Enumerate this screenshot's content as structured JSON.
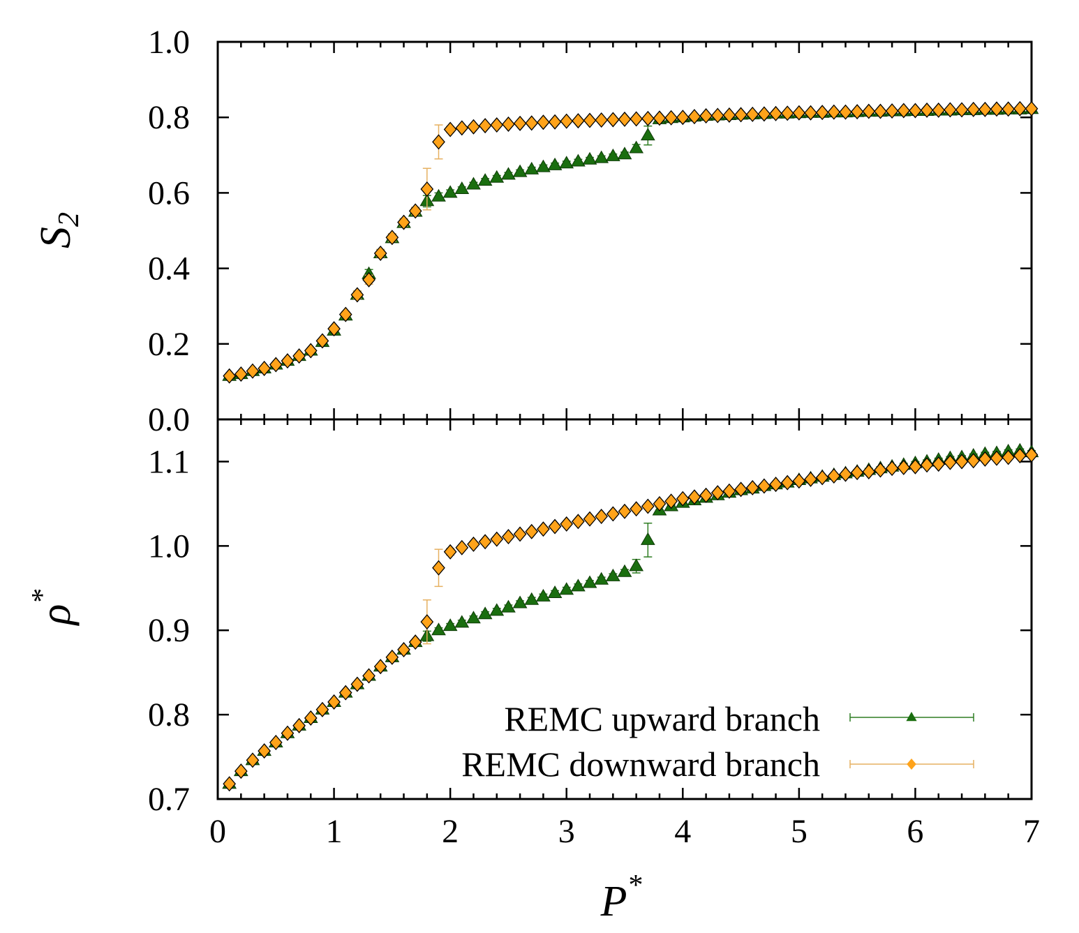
{
  "chart_data": [
    {
      "type": "scatter",
      "panel": "top",
      "ylabel": "S",
      "ylabel_subscript": "2",
      "xlabel": "",
      "xlim": [
        0,
        7
      ],
      "ylim": [
        0.0,
        1.0
      ],
      "yticks": [
        "0.0",
        "0.2",
        "0.4",
        "0.6",
        "0.8",
        "1.0"
      ],
      "grid": false,
      "series": [
        {
          "name": "REMC upward branch",
          "marker": "triangle",
          "color": "#1a6e0f",
          "x": [
            0.1,
            0.2,
            0.3,
            0.4,
            0.5,
            0.6,
            0.7,
            0.8,
            0.9,
            1.0,
            1.1,
            1.2,
            1.3,
            1.4,
            1.5,
            1.6,
            1.7,
            1.8,
            1.9,
            2.0,
            2.1,
            2.2,
            2.3,
            2.4,
            2.5,
            2.6,
            2.7,
            2.8,
            2.9,
            3.0,
            3.1,
            3.2,
            3.3,
            3.4,
            3.5,
            3.6,
            3.7,
            3.8,
            3.9,
            4.0,
            4.1,
            4.2,
            4.3,
            4.4,
            4.5,
            4.6,
            4.7,
            4.8,
            4.9,
            5.0,
            5.1,
            5.2,
            5.3,
            5.4,
            5.5,
            5.6,
            5.7,
            5.8,
            5.9,
            6.0,
            6.1,
            6.2,
            6.3,
            6.4,
            6.5,
            6.6,
            6.7,
            6.8,
            6.9,
            7.0
          ],
          "y": [
            0.115,
            0.12,
            0.128,
            0.135,
            0.145,
            0.155,
            0.168,
            0.182,
            0.205,
            0.235,
            0.275,
            0.33,
            0.385,
            0.44,
            0.48,
            0.52,
            0.55,
            0.578,
            0.59,
            0.6,
            0.61,
            0.622,
            0.632,
            0.64,
            0.648,
            0.655,
            0.662,
            0.668,
            0.673,
            0.678,
            0.683,
            0.688,
            0.692,
            0.697,
            0.702,
            0.718,
            0.752,
            0.795,
            0.798,
            0.8,
            0.802,
            0.804,
            0.805,
            0.806,
            0.807,
            0.808,
            0.809,
            0.81,
            0.81,
            0.811,
            0.812,
            0.812,
            0.813,
            0.813,
            0.814,
            0.815,
            0.815,
            0.816,
            0.816,
            0.817,
            0.817,
            0.818,
            0.818,
            0.819,
            0.819,
            0.82,
            0.82,
            0.821,
            0.821,
            0.822
          ],
          "err": [
            0.004,
            0.004,
            0.004,
            0.004,
            0.004,
            0.004,
            0.004,
            0.004,
            0.005,
            0.006,
            0.008,
            0.01,
            0.012,
            0.01,
            0.01,
            0.01,
            0.01,
            0.015,
            0.01,
            0.008,
            0.006,
            0.006,
            0.006,
            0.006,
            0.006,
            0.006,
            0.006,
            0.006,
            0.006,
            0.006,
            0.006,
            0.006,
            0.006,
            0.006,
            0.006,
            0.01,
            0.025,
            0.006,
            0.004,
            0.004,
            0.004,
            0.004,
            0.004,
            0.004,
            0.004,
            0.004,
            0.004,
            0.004,
            0.004,
            0.004,
            0.004,
            0.004,
            0.004,
            0.004,
            0.004,
            0.004,
            0.004,
            0.004,
            0.004,
            0.004,
            0.004,
            0.004,
            0.004,
            0.004,
            0.004,
            0.004,
            0.004,
            0.004,
            0.004,
            0.004
          ]
        },
        {
          "name": "REMC downward branch",
          "marker": "diamond",
          "color": "#ffa31a",
          "x": [
            0.1,
            0.2,
            0.3,
            0.4,
            0.5,
            0.6,
            0.7,
            0.8,
            0.9,
            1.0,
            1.1,
            1.2,
            1.3,
            1.4,
            1.5,
            1.6,
            1.7,
            1.8,
            1.9,
            2.0,
            2.1,
            2.2,
            2.3,
            2.4,
            2.5,
            2.6,
            2.7,
            2.8,
            2.9,
            3.0,
            3.1,
            3.2,
            3.3,
            3.4,
            3.5,
            3.6,
            3.7,
            3.8,
            3.9,
            4.0,
            4.1,
            4.2,
            4.3,
            4.4,
            4.5,
            4.6,
            4.7,
            4.8,
            4.9,
            5.0,
            5.1,
            5.2,
            5.3,
            5.4,
            5.5,
            5.6,
            5.7,
            5.8,
            5.9,
            6.0,
            6.1,
            6.2,
            6.3,
            6.4,
            6.5,
            6.6,
            6.7,
            6.8,
            6.9,
            7.0
          ],
          "y": [
            0.115,
            0.12,
            0.128,
            0.135,
            0.145,
            0.155,
            0.168,
            0.182,
            0.208,
            0.24,
            0.278,
            0.33,
            0.37,
            0.44,
            0.482,
            0.522,
            0.552,
            0.61,
            0.735,
            0.768,
            0.772,
            0.775,
            0.778,
            0.78,
            0.782,
            0.784,
            0.785,
            0.787,
            0.788,
            0.79,
            0.791,
            0.792,
            0.793,
            0.794,
            0.795,
            0.796,
            0.797,
            0.798,
            0.799,
            0.8,
            0.802,
            0.804,
            0.805,
            0.806,
            0.807,
            0.808,
            0.809,
            0.81,
            0.811,
            0.812,
            0.812,
            0.813,
            0.814,
            0.814,
            0.815,
            0.816,
            0.816,
            0.817,
            0.818,
            0.818,
            0.819,
            0.819,
            0.82,
            0.82,
            0.821,
            0.821,
            0.822,
            0.822,
            0.823,
            0.823
          ],
          "err": [
            0.004,
            0.004,
            0.004,
            0.004,
            0.004,
            0.004,
            0.004,
            0.004,
            0.005,
            0.006,
            0.008,
            0.01,
            0.012,
            0.01,
            0.01,
            0.01,
            0.01,
            0.055,
            0.045,
            0.008,
            0.005,
            0.004,
            0.004,
            0.004,
            0.004,
            0.004,
            0.004,
            0.004,
            0.004,
            0.004,
            0.004,
            0.004,
            0.004,
            0.004,
            0.004,
            0.004,
            0.004,
            0.004,
            0.004,
            0.004,
            0.004,
            0.004,
            0.004,
            0.004,
            0.004,
            0.004,
            0.004,
            0.004,
            0.004,
            0.004,
            0.004,
            0.004,
            0.004,
            0.004,
            0.004,
            0.004,
            0.004,
            0.004,
            0.004,
            0.004,
            0.004,
            0.004,
            0.004,
            0.004,
            0.004,
            0.004,
            0.004,
            0.004,
            0.004,
            0.004
          ]
        }
      ]
    },
    {
      "type": "scatter",
      "panel": "bottom",
      "ylabel": "ρ",
      "ylabel_superscript": "*",
      "xlabel": "P",
      "xlabel_superscript": "*",
      "xlim": [
        0,
        7
      ],
      "ylim": [
        0.7,
        1.15
      ],
      "xticks": [
        "0",
        "1",
        "2",
        "3",
        "4",
        "5",
        "6",
        "7"
      ],
      "yticks": [
        "0.7",
        "0.8",
        "0.9",
        "1.0",
        "1.1"
      ],
      "grid": false,
      "legend_position": "bottom-right",
      "series": [
        {
          "name": "REMC upward branch",
          "marker": "triangle",
          "color": "#1a6e0f",
          "x": [
            0.1,
            0.2,
            0.3,
            0.4,
            0.5,
            0.6,
            0.7,
            0.8,
            0.9,
            1.0,
            1.1,
            1.2,
            1.3,
            1.4,
            1.5,
            1.6,
            1.7,
            1.8,
            1.9,
            2.0,
            2.1,
            2.2,
            2.3,
            2.4,
            2.5,
            2.6,
            2.7,
            2.8,
            2.9,
            3.0,
            3.1,
            3.2,
            3.3,
            3.4,
            3.5,
            3.6,
            3.7,
            3.8,
            3.9,
            4.0,
            4.1,
            4.2,
            4.3,
            4.4,
            4.5,
            4.6,
            4.7,
            4.8,
            4.9,
            5.0,
            5.1,
            5.2,
            5.3,
            5.4,
            5.5,
            5.6,
            5.7,
            5.8,
            5.9,
            6.0,
            6.1,
            6.2,
            6.3,
            6.4,
            6.5,
            6.6,
            6.7,
            6.8,
            6.9,
            7.0
          ],
          "y": [
            0.718,
            0.733,
            0.746,
            0.757,
            0.767,
            0.778,
            0.787,
            0.796,
            0.806,
            0.815,
            0.826,
            0.836,
            0.846,
            0.857,
            0.868,
            0.877,
            0.886,
            0.893,
            0.9,
            0.905,
            0.909,
            0.914,
            0.919,
            0.923,
            0.927,
            0.932,
            0.936,
            0.94,
            0.944,
            0.948,
            0.952,
            0.956,
            0.96,
            0.964,
            0.969,
            0.976,
            1.007,
            1.042,
            1.047,
            1.051,
            1.054,
            1.057,
            1.06,
            1.063,
            1.066,
            1.068,
            1.071,
            1.073,
            1.075,
            1.078,
            1.08,
            1.082,
            1.084,
            1.086,
            1.088,
            1.09,
            1.092,
            1.094,
            1.096,
            1.098,
            1.1,
            1.102,
            1.104,
            1.105,
            1.107,
            1.109,
            1.11,
            1.112,
            1.113,
            1.111
          ],
          "err": [
            0.002,
            0.002,
            0.002,
            0.002,
            0.002,
            0.002,
            0.002,
            0.002,
            0.002,
            0.002,
            0.002,
            0.002,
            0.002,
            0.002,
            0.002,
            0.002,
            0.002,
            0.006,
            0.003,
            0.003,
            0.003,
            0.003,
            0.003,
            0.003,
            0.003,
            0.003,
            0.003,
            0.003,
            0.003,
            0.003,
            0.003,
            0.003,
            0.003,
            0.003,
            0.003,
            0.008,
            0.02,
            0.004,
            0.002,
            0.002,
            0.002,
            0.002,
            0.002,
            0.002,
            0.002,
            0.002,
            0.002,
            0.002,
            0.002,
            0.002,
            0.002,
            0.002,
            0.002,
            0.002,
            0.002,
            0.002,
            0.002,
            0.002,
            0.002,
            0.002,
            0.002,
            0.002,
            0.002,
            0.002,
            0.002,
            0.002,
            0.002,
            0.002,
            0.002,
            0.002
          ]
        },
        {
          "name": "REMC downward branch",
          "marker": "diamond",
          "color": "#ffa31a",
          "x": [
            0.1,
            0.2,
            0.3,
            0.4,
            0.5,
            0.6,
            0.7,
            0.8,
            0.9,
            1.0,
            1.1,
            1.2,
            1.3,
            1.4,
            1.5,
            1.6,
            1.7,
            1.8,
            1.9,
            2.0,
            2.1,
            2.2,
            2.3,
            2.4,
            2.5,
            2.6,
            2.7,
            2.8,
            2.9,
            3.0,
            3.1,
            3.2,
            3.3,
            3.4,
            3.5,
            3.6,
            3.7,
            3.8,
            3.9,
            4.0,
            4.1,
            4.2,
            4.3,
            4.4,
            4.5,
            4.6,
            4.7,
            4.8,
            4.9,
            5.0,
            5.1,
            5.2,
            5.3,
            5.4,
            5.5,
            5.6,
            5.7,
            5.8,
            5.9,
            6.0,
            6.1,
            6.2,
            6.3,
            6.4,
            6.5,
            6.6,
            6.7,
            6.8,
            6.9,
            7.0
          ],
          "y": [
            0.718,
            0.733,
            0.746,
            0.757,
            0.767,
            0.778,
            0.787,
            0.796,
            0.806,
            0.815,
            0.826,
            0.836,
            0.846,
            0.857,
            0.868,
            0.877,
            0.886,
            0.91,
            0.974,
            0.993,
            0.998,
            1.002,
            1.005,
            1.008,
            1.011,
            1.014,
            1.017,
            1.02,
            1.023,
            1.026,
            1.029,
            1.032,
            1.035,
            1.038,
            1.041,
            1.044,
            1.047,
            1.05,
            1.053,
            1.056,
            1.058,
            1.06,
            1.063,
            1.065,
            1.067,
            1.069,
            1.071,
            1.073,
            1.075,
            1.077,
            1.079,
            1.081,
            1.083,
            1.085,
            1.087,
            1.088,
            1.09,
            1.092,
            1.093,
            1.094,
            1.096,
            1.097,
            1.099,
            1.1,
            1.101,
            1.103,
            1.104,
            1.105,
            1.107,
            1.108
          ],
          "err": [
            0.002,
            0.002,
            0.002,
            0.002,
            0.002,
            0.002,
            0.002,
            0.002,
            0.002,
            0.002,
            0.002,
            0.002,
            0.002,
            0.002,
            0.002,
            0.002,
            0.002,
            0.026,
            0.022,
            0.004,
            0.002,
            0.002,
            0.002,
            0.002,
            0.002,
            0.002,
            0.002,
            0.002,
            0.002,
            0.002,
            0.002,
            0.002,
            0.002,
            0.002,
            0.002,
            0.002,
            0.002,
            0.002,
            0.002,
            0.002,
            0.002,
            0.002,
            0.002,
            0.002,
            0.002,
            0.002,
            0.002,
            0.002,
            0.002,
            0.002,
            0.002,
            0.002,
            0.002,
            0.002,
            0.002,
            0.002,
            0.002,
            0.002,
            0.002,
            0.002,
            0.002,
            0.002,
            0.002,
            0.002,
            0.002,
            0.002,
            0.002,
            0.002,
            0.002,
            0.002
          ]
        }
      ]
    }
  ],
  "legend": {
    "entries": [
      "REMC upward branch",
      "REMC downward branch"
    ],
    "position": "bottom-right"
  }
}
